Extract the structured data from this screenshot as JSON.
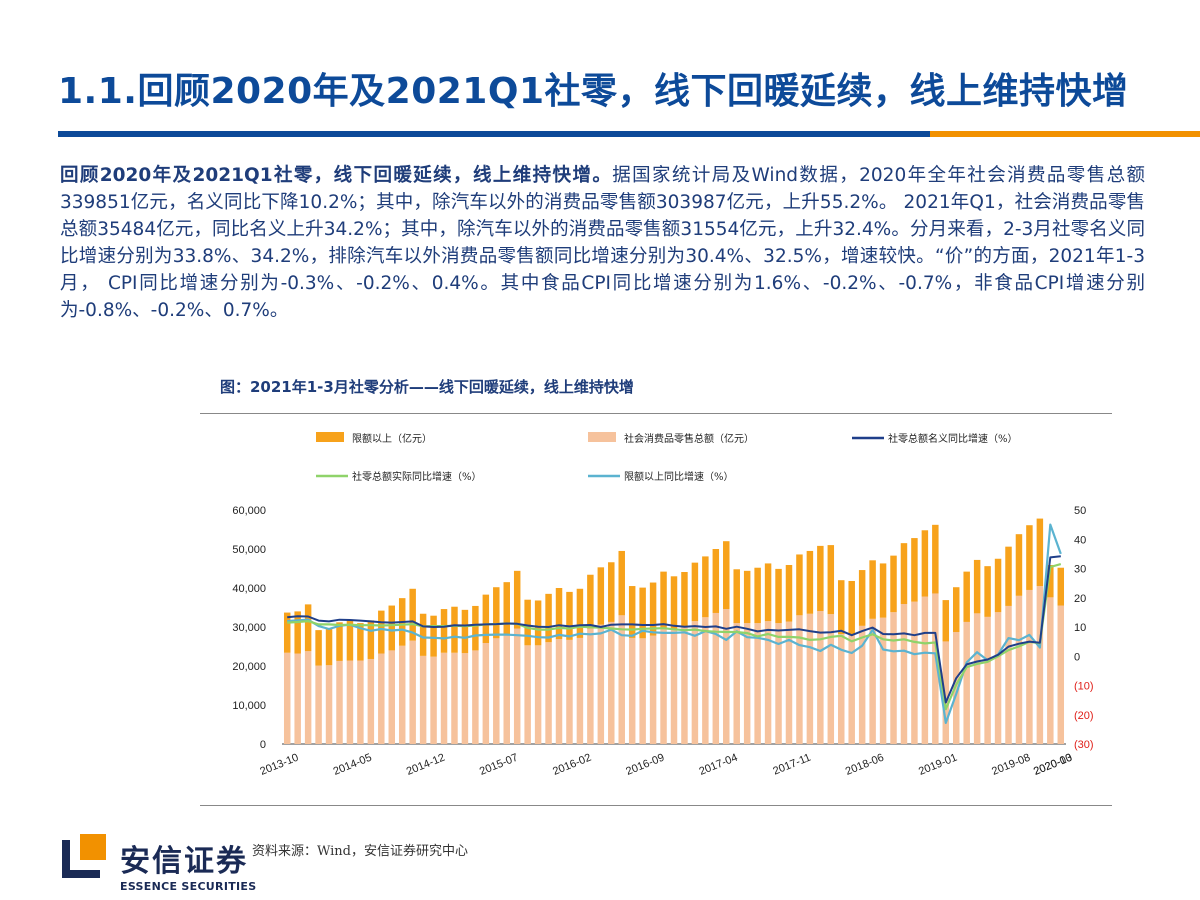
{
  "header": {
    "title": "1.1.回顾2020年及2021Q1社零，线下回暖延续，线上维持快增"
  },
  "body": {
    "lead": "回顾2020年及2021Q1社零，线下回暖延续，线上维持快增。",
    "text": "据国家统计局及Wind数据，2020年全年社会消费品零售总额339851亿元，名义同比下降10.2%；其中，除汽车以外的消费品零售额303987亿元，上升55.2%。 2021年Q1，社会消费品零售总额35484亿元，同比名义上升34.2%；其中，除汽车以外的消费品零售额31554亿元，上升32.4%。分月来看，2-3月社零名义同比增速分别为33.8%、34.2%，排除汽车以外消费品零售额同比增速分别为30.4%、32.5%，增速较快。“价”的方面，2021年1-3月， CPI同比增速分别为-0.3%、-0.2%、0.4%。其中食品CPI同比增速分别为1.6%、-0.2%、-0.7%，非食品CPI增速分别为-0.8%、-0.2%、0.7%。"
  },
  "figure": {
    "title": "图：2021年1-3月社零分析——线下回暖延续，线上维持快增",
    "source": "资料来源：Wind，安信证券研究中心"
  },
  "logo": {
    "cn": "安信证券",
    "en": "ESSENCE SECURITIES"
  },
  "colors": {
    "brand_blue": "#0d4a99",
    "brand_orange": "#f29100",
    "above_limit_bar": "#f7a21b",
    "total_bar": "#f6c29c",
    "nominal_line": "#1f3f8a",
    "real_line": "#8fd36a",
    "above_limit_line": "#5bb3d0"
  },
  "chart_data": {
    "type": "bar+line",
    "legend": [
      "限额以上（亿元）",
      "社会消费品零售总额（亿元）",
      "社零总额名义同比增速（%）",
      "社零总额实际同比增速（%）",
      "限额以上同比增速（%）"
    ],
    "x_tick_labels": [
      "2013-10",
      "2014-05",
      "2014-12",
      "2015-07",
      "2016-02",
      "2016-09",
      "2017-04",
      "2017-11",
      "2018-06",
      "2019-01",
      "2019-08",
      "2020-03",
      "2020-10"
    ],
    "y_left": {
      "ylim": [
        0,
        60000
      ],
      "ticks": [
        "0",
        "10,000",
        "20,000",
        "30,000",
        "40,000",
        "50,000",
        "60,000"
      ]
    },
    "y_right": {
      "ylim": [
        -30,
        50
      ],
      "ticks": [
        "(30)",
        "(20)",
        "(10)",
        "0",
        "10",
        "20",
        "30",
        "40",
        "50"
      ]
    },
    "months": [
      "2013-10",
      "2013-11",
      "2013-12",
      "2014-03",
      "2014-04",
      "2014-05",
      "2014-06",
      "2014-07",
      "2014-08",
      "2014-09",
      "2014-10",
      "2014-11",
      "2014-12",
      "2015-03",
      "2015-04",
      "2015-05",
      "2015-06",
      "2015-07",
      "2015-08",
      "2015-09",
      "2015-10",
      "2015-11",
      "2015-12",
      "2016-03",
      "2016-04",
      "2016-05",
      "2016-06",
      "2016-07",
      "2016-08",
      "2016-09",
      "2016-10",
      "2016-11",
      "2016-12",
      "2017-03",
      "2017-04",
      "2017-05",
      "2017-06",
      "2017-07",
      "2017-08",
      "2017-09",
      "2017-10",
      "2017-11",
      "2017-12",
      "2018-03",
      "2018-04",
      "2018-05",
      "2018-06",
      "2018-07",
      "2018-08",
      "2018-09",
      "2018-10",
      "2018-11",
      "2018-12",
      "2019-03",
      "2019-04",
      "2019-05",
      "2019-06",
      "2019-07",
      "2019-08",
      "2019-09",
      "2019-10",
      "2019-11",
      "2019-12",
      "2020-03",
      "2020-04",
      "2020-05",
      "2020-06",
      "2020-07",
      "2020-08",
      "2020-09",
      "2020-10",
      "2020-11",
      "2020-12",
      "2021-02",
      "2021-03"
    ],
    "series": [
      {
        "name": "限额以上（亿元）",
        "values": [
          10300,
          10800,
          12000,
          9100,
          9300,
          9900,
          10400,
          9600,
          9900,
          11000,
          11500,
          12200,
          13300,
          10800,
          10500,
          11200,
          11800,
          11100,
          11400,
          12400,
          13100,
          13700,
          14800,
          11700,
          11500,
          12400,
          13100,
          12300,
          12600,
          13800,
          14700,
          15300,
          16500,
          13300,
          13000,
          13600,
          14400,
          13500,
          14000,
          15000,
          15600,
          16400,
          17400,
          13800,
          13400,
          14200,
          14800,
          13900,
          14500,
          15600,
          16100,
          16700,
          17700,
          13800,
          13700,
          14300,
          15000,
          13900,
          14500,
          15600,
          16300,
          17000,
          17600,
          10600,
          11500,
          12900,
          13700,
          13000,
          13700,
          15200,
          15800,
          16600,
          17300,
          8300,
          9700
        ]
      },
      {
        "name": "社会消费品零售总额（亿元）",
        "values": [
          23400,
          23200,
          23800,
          20100,
          20200,
          21300,
          21400,
          21400,
          21800,
          23200,
          24000,
          25200,
          26500,
          22600,
          22400,
          23400,
          23400,
          23300,
          24000,
          25900,
          27100,
          27800,
          29600,
          25300,
          25300,
          26100,
          26900,
          26700,
          27200,
          29600,
          30600,
          31300,
          33000,
          27200,
          27100,
          27800,
          29800,
          29500,
          30100,
          31500,
          32500,
          33600,
          34600,
          31000,
          31000,
          31000,
          31500,
          31000,
          31400,
          33000,
          33400,
          34100,
          33300,
          28200,
          28100,
          30300,
          32100,
          32400,
          33800,
          35900,
          36500,
          37800,
          38600,
          26300,
          28700,
          31300,
          33500,
          32600,
          33800,
          35400,
          38000,
          39500,
          40500,
          37600,
          35500
        ]
      },
      {
        "name": "社零总额名义同比增速（%）",
        "values": [
          13.3,
          13.7,
          13.6,
          12.2,
          11.9,
          12.5,
          12.4,
          12.2,
          11.9,
          11.6,
          11.5,
          11.7,
          11.9,
          10.2,
          10.0,
          10.1,
          10.6,
          10.5,
          10.8,
          10.9,
          11.0,
          11.2,
          11.1,
          10.5,
          10.1,
          10.0,
          10.6,
          10.2,
          10.6,
          10.7,
          10.0,
          10.8,
          10.9,
          10.9,
          10.7,
          10.7,
          11.0,
          10.4,
          10.1,
          10.3,
          10.0,
          10.2,
          9.4,
          10.1,
          9.4,
          8.5,
          9.0,
          8.8,
          9.0,
          9.2,
          8.6,
          8.1,
          8.2,
          8.7,
          7.2,
          8.6,
          9.8,
          7.6,
          7.5,
          7.8,
          7.2,
          8.0,
          8.0,
          -15.8,
          -7.5,
          -2.8,
          -1.8,
          -1.1,
          0.5,
          3.3,
          4.3,
          5.0,
          4.6,
          33.8,
          34.2
        ]
      },
      {
        "name": "社零总额实际同比增速（%）",
        "values": [
          11.5,
          11.7,
          12.0,
          10.9,
          10.9,
          10.7,
          10.8,
          10.6,
          10.6,
          10.5,
          10.6,
          10.8,
          11.0,
          10.2,
          10.3,
          10.3,
          10.4,
          10.3,
          10.5,
          10.9,
          11.0,
          11.2,
          11.1,
          9.7,
          9.1,
          9.1,
          9.7,
          9.5,
          10.1,
          9.9,
          9.8,
          9.5,
          9.2,
          9.1,
          9.4,
          9.5,
          9.6,
          9.2,
          8.9,
          9.1,
          8.6,
          8.4,
          8.3,
          8.3,
          7.9,
          6.8,
          7.6,
          6.6,
          6.6,
          6.4,
          5.6,
          5.8,
          6.6,
          7.0,
          5.1,
          6.4,
          7.5,
          5.8,
          5.4,
          5.8,
          4.9,
          4.4,
          4.7,
          -18.1,
          -9.7,
          -3.7,
          -2.6,
          -1.9,
          0.0,
          2.1,
          3.4,
          4.9,
          4.5,
          30.5,
          31.5
        ]
      },
      {
        "name": "限额以上同比增速（%）",
        "values": [
          12.0,
          12.3,
          12.5,
          10.3,
          9.3,
          10.4,
          10.8,
          9.6,
          8.7,
          9.3,
          8.8,
          9.1,
          8.1,
          6.4,
          6.3,
          6.1,
          6.7,
          6.3,
          7.1,
          7.3,
          7.4,
          7.4,
          7.2,
          7.0,
          6.5,
          6.4,
          7.3,
          6.8,
          7.7,
          7.5,
          7.8,
          9.1,
          7.2,
          7.0,
          8.7,
          8.2,
          8.0,
          8.0,
          8.2,
          7.0,
          8.6,
          7.6,
          5.6,
          8.5,
          6.5,
          6.3,
          5.6,
          4.2,
          5.6,
          3.8,
          3.1,
          1.8,
          3.9,
          2.2,
          1.1,
          3.6,
          9.0,
          2.3,
          1.7,
          1.9,
          0.7,
          1.2,
          1.0,
          -22.8,
          -12.9,
          -2.1,
          1.4,
          -1.4,
          0.6,
          6.2,
          5.5,
          7.3,
          3.0,
          45.0,
          35.0
        ]
      }
    ]
  }
}
